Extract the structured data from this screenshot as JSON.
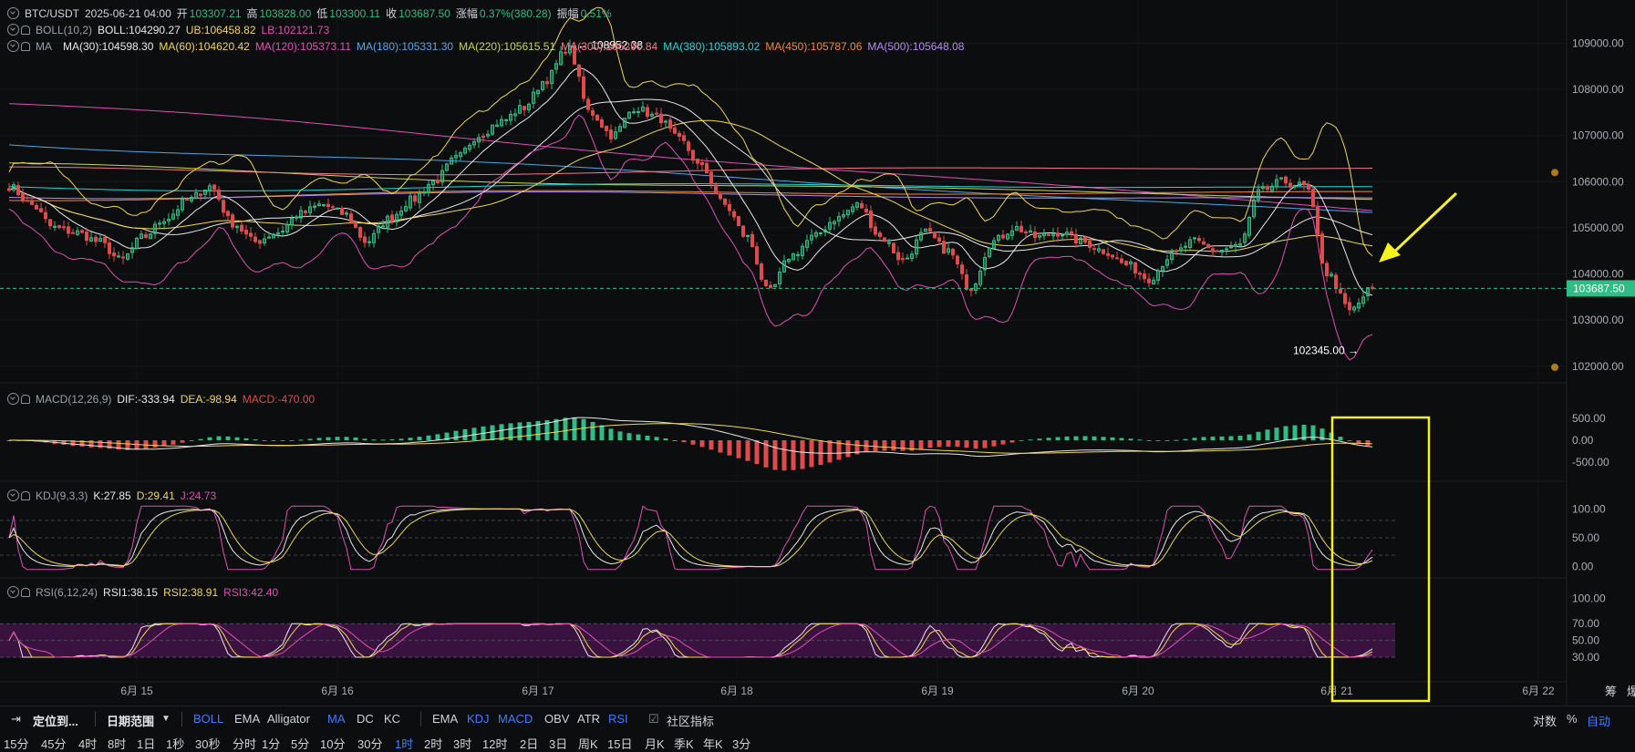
{
  "header": {
    "pair": "BTC/USDT",
    "datetime": "2025-06-21 04:00",
    "open_label": "开",
    "open": "103307.21",
    "high_label": "高",
    "high": "103828.00",
    "low_label": "低",
    "low": "103300.11",
    "close_label": "收",
    "close": "103687.50",
    "change_label": "涨幅",
    "change": "0.37%(380.28)",
    "amp_label": "振幅",
    "amp": "0.51%"
  },
  "boll": {
    "name": "BOLL(10,2)",
    "boll": "BOLL:104290.27",
    "ub": "UB:106458.82",
    "lb": "LB:102121.73"
  },
  "ma": {
    "name": "MA",
    "items": [
      {
        "text": "MA(30):104598.30",
        "color": "#e8e8e8"
      },
      {
        "text": "MA(60):104620.42",
        "color": "#f2d64b"
      },
      {
        "text": "MA(120):105373.11",
        "color": "#e04fb5"
      },
      {
        "text": "MA(180):105331.30",
        "color": "#4ea7e8"
      },
      {
        "text": "MA(220):105615.51",
        "color": "#c9d64b"
      },
      {
        "text": "MA(300):106290.84",
        "color": "#f07a8c"
      },
      {
        "text": "MA(380):105893.02",
        "color": "#22d6d6"
      },
      {
        "text": "MA(450):105787.06",
        "color": "#f08a34"
      },
      {
        "text": "MA(500):105648.08",
        "color": "#b58cf0"
      }
    ]
  },
  "macd": {
    "name": "MACD(12,26,9)",
    "dif": "DIF:-333.94",
    "dea": "DEA:-98.94",
    "macd": "MACD:-470.00"
  },
  "kdj": {
    "name": "KDJ(9,3,3)",
    "k": "K:27.85",
    "d": "D:29.41",
    "j": "J:24.73"
  },
  "rsi": {
    "name": "RSI(6,12,24)",
    "r1": "RSI1:38.15",
    "r2": "RSI2:38.91",
    "r3": "RSI3:42.40"
  },
  "annotations": {
    "high": "← 108952.38",
    "low": "102345.00 →"
  },
  "price_tag": "103687.50",
  "toolbar": {
    "locate": "定位到...",
    "range": "日期范围",
    "overlays": [
      "BOLL",
      "EMA",
      "Alligator",
      "MA",
      "DC",
      "KC"
    ],
    "overlays_active": [
      "BOLL",
      "MA"
    ],
    "subs": [
      "EMA",
      "KDJ",
      "MACD",
      "OBV",
      "ATR",
      "RSI"
    ],
    "subs_active": [
      "KDJ",
      "MACD",
      "RSI"
    ],
    "community": "社区指标",
    "right": [
      "对数",
      "%",
      "自动"
    ]
  },
  "timeframes": [
    "15分",
    "45分",
    "4时",
    "8时",
    "1日",
    "1秒",
    "30秒",
    "分时",
    "1分",
    "5分",
    "10分",
    "30分",
    "1时",
    "2时",
    "3时",
    "12时",
    "2日",
    "3日",
    "周K",
    "15日",
    "月K",
    "季K",
    "年K",
    "3分"
  ],
  "timeframe_active": "1时",
  "right_extra": [
    "筹",
    "爆"
  ],
  "chart_data": {
    "type": "candlestick",
    "x_ticks": [
      "6月 15",
      "6月 16",
      "6月 17",
      "6月 18",
      "6月 19",
      "6月 20",
      "6月 21",
      "6月 22"
    ],
    "y_ticks_main": [
      102000,
      103000,
      104000,
      105000,
      106000,
      107000,
      108000,
      109000
    ],
    "y_ticks_macd": [
      500,
      0,
      -500
    ],
    "y_ticks_kdj": [
      100,
      50,
      0
    ],
    "y_ticks_rsi": [
      100,
      70,
      50,
      30
    ],
    "ylim_main": [
      101800,
      109500
    ],
    "ohlc_anchor_close": [
      105900,
      105500,
      105000,
      104900,
      104700,
      104300,
      104800,
      105200,
      105600,
      105900,
      105100,
      104700,
      104900,
      105300,
      105500,
      105300,
      104700,
      105200,
      105600,
      106000,
      106500,
      107000,
      107300,
      107600,
      108200,
      108900,
      107500,
      107000,
      107600,
      107400,
      106900,
      106300,
      105500,
      104800,
      103600,
      104400,
      104800,
      105200,
      105500,
      104800,
      104300,
      104900,
      104500,
      103700,
      104700,
      105000,
      104800,
      104900,
      104700,
      104500,
      104200,
      103900,
      104400,
      104700,
      104500,
      104600,
      105800,
      106000,
      105900,
      104000,
      103200,
      103687.5
    ],
    "series": [
      {
        "name": "MA(30)",
        "color": "#e8e8e8"
      },
      {
        "name": "MA(60)",
        "color": "#f2d64b"
      },
      {
        "name": "MA(120)",
        "color": "#e04fb5"
      },
      {
        "name": "MA(180)",
        "color": "#4ea7e8"
      },
      {
        "name": "MA(220)",
        "color": "#c9d64b"
      },
      {
        "name": "MA(300)",
        "color": "#f07a8c"
      },
      {
        "name": "MA(380)",
        "color": "#22d6d6"
      },
      {
        "name": "MA(450)",
        "color": "#f08a34"
      },
      {
        "name": "MA(500)",
        "color": "#b58cf0"
      }
    ],
    "levels_main": {
      "MA(300)": 106290.84,
      "MA(380)": 105893.02,
      "MA(450)": 105787.06,
      "MA(500)": 105648.08,
      "MA(220)": 105615.51,
      "MA(120)": 105373.11,
      "MA(180)": 105331.3
    },
    "high_mark": 108952.38,
    "low_mark": 102345.0,
    "current": 103687.5,
    "colors": {
      "up": "#2ebd85",
      "down": "#e04a4a",
      "boll_mid": "#e8e8e8",
      "boll_ub": "#f2d64b",
      "boll_lb": "#e04fb5",
      "rsi_band": "#3a1240",
      "annotation": "#f7f21a"
    }
  }
}
